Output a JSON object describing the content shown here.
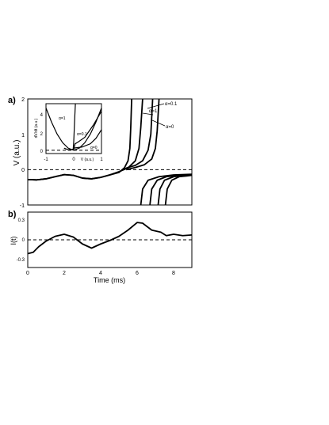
{
  "chart_data": [
    {
      "panel": "a)",
      "type": "line",
      "ylabel": "V (a.u.)",
      "xlim": [
        0,
        9
      ],
      "ylim": [
        -1,
        2
      ],
      "yticks": [
        "-1",
        "0",
        "1",
        "2"
      ],
      "reference_line_y": 0,
      "series": [
        {
          "name": "α=1",
          "points": [
            [
              0,
              -0.28
            ],
            [
              0.5,
              -0.29
            ],
            [
              1,
              -0.26
            ],
            [
              1.5,
              -0.2
            ],
            [
              2,
              -0.14
            ],
            [
              2.5,
              -0.16
            ],
            [
              3,
              -0.24
            ],
            [
              3.5,
              -0.26
            ],
            [
              4,
              -0.22
            ],
            [
              4.5,
              -0.15
            ],
            [
              5,
              -0.08
            ],
            [
              5.3,
              0.05
            ],
            [
              5.5,
              0.25
            ],
            [
              5.6,
              0.6
            ],
            [
              5.65,
              1.2
            ],
            [
              5.7,
              2.0
            ]
          ]
        },
        {
          "name": "α=0.1",
          "points": [
            [
              0,
              -0.28
            ],
            [
              0.5,
              -0.29
            ],
            [
              1,
              -0.26
            ],
            [
              1.5,
              -0.2
            ],
            [
              2,
              -0.14
            ],
            [
              2.5,
              -0.16
            ],
            [
              3,
              -0.24
            ],
            [
              3.5,
              -0.26
            ],
            [
              4,
              -0.22
            ],
            [
              4.5,
              -0.15
            ],
            [
              5,
              -0.06
            ],
            [
              5.5,
              0.05
            ],
            [
              5.9,
              0.25
            ],
            [
              6.1,
              0.6
            ],
            [
              6.2,
              1.2
            ],
            [
              6.3,
              2.0
            ]
          ]
        },
        {
          "name": "",
          "points": [
            [
              5.2,
              0
            ],
            [
              5.5,
              0.06
            ],
            [
              5.9,
              0.12
            ],
            [
              6.3,
              0.25
            ],
            [
              6.6,
              0.55
            ],
            [
              6.75,
              1.0
            ],
            [
              6.85,
              2.0
            ]
          ]
        },
        {
          "name": "α=0",
          "points": [
            [
              5.4,
              0
            ],
            [
              5.9,
              0.06
            ],
            [
              6.4,
              0.14
            ],
            [
              6.8,
              0.3
            ],
            [
              7.0,
              0.6
            ],
            [
              7.1,
              1.1
            ],
            [
              7.2,
              2.0
            ]
          ]
        },
        {
          "name": "",
          "points": [
            [
              6.2,
              -1.0
            ],
            [
              6.3,
              -0.55
            ],
            [
              6.6,
              -0.3
            ],
            [
              7.2,
              -0.2
            ],
            [
              8.0,
              -0.15
            ],
            [
              9.0,
              -0.13
            ]
          ]
        },
        {
          "name": "",
          "points": [
            [
              6.7,
              -1.0
            ],
            [
              6.8,
              -0.55
            ],
            [
              7.1,
              -0.3
            ],
            [
              7.6,
              -0.2
            ],
            [
              8.3,
              -0.16
            ],
            [
              9.0,
              -0.14
            ]
          ]
        },
        {
          "name": "",
          "points": [
            [
              7.15,
              -1.0
            ],
            [
              7.25,
              -0.55
            ],
            [
              7.5,
              -0.3
            ],
            [
              8.0,
              -0.2
            ],
            [
              8.5,
              -0.17
            ],
            [
              9.0,
              -0.15
            ]
          ]
        },
        {
          "name": "",
          "points": [
            [
              7.55,
              -1.0
            ],
            [
              7.65,
              -0.55
            ],
            [
              7.9,
              -0.3
            ],
            [
              8.3,
              -0.2
            ],
            [
              8.7,
              -0.18
            ],
            [
              9.0,
              -0.16
            ]
          ]
        }
      ],
      "annotations": [
        "α=1",
        "α=0.1",
        "α=0"
      ]
    },
    {
      "panel": "inset",
      "type": "line",
      "xlabel": "V (a.u.)",
      "ylabel": "dV/dt (a.u.)",
      "xlim": [
        -1,
        1
      ],
      "ylim": [
        -0.3,
        4.3
      ],
      "xticks": [
        "-1",
        "0",
        "1"
      ],
      "yticks": [
        "0",
        "2",
        "4"
      ],
      "reference_line_y": 0,
      "series": [
        {
          "name": "α=1",
          "points": [
            [
              -0.02,
              0.1
            ],
            [
              0.0,
              0.8
            ],
            [
              0.02,
              2.0
            ],
            [
              0.04,
              3.2
            ],
            [
              0.06,
              4.3
            ]
          ]
        },
        {
          "name": "α=0.1",
          "points": [
            [
              -0.35,
              0.2
            ],
            [
              -0.2,
              0.05
            ],
            [
              0.0,
              0.1
            ],
            [
              0.05,
              0.6
            ],
            [
              0.15,
              0.75
            ],
            [
              0.4,
              1.2
            ],
            [
              0.7,
              2.3
            ],
            [
              1.0,
              3.6
            ]
          ]
        },
        {
          "name": "α=0",
          "points": [
            [
              0.0,
              0.2
            ],
            [
              0.3,
              0.3
            ],
            [
              0.6,
              0.6
            ],
            [
              0.8,
              1.1
            ],
            [
              1.0,
              1.9
            ]
          ]
        },
        {
          "name": "",
          "points": [
            [
              -1.0,
              3.9
            ],
            [
              -0.8,
              2.6
            ],
            [
              -0.6,
              1.5
            ],
            [
              -0.4,
              0.7
            ],
            [
              -0.2,
              0.2
            ],
            [
              0.0,
              0.0
            ],
            [
              0.2,
              0.2
            ],
            [
              0.4,
              0.7
            ],
            [
              0.6,
              1.5
            ],
            [
              0.8,
              2.6
            ],
            [
              1.0,
              3.9
            ]
          ]
        }
      ],
      "annotations": [
        "α=1",
        "α=0.1",
        "α=0"
      ]
    },
    {
      "panel": "b)",
      "type": "line",
      "xlabel": "Time (ms)",
      "ylabel": "I(t)",
      "xlim": [
        0,
        9
      ],
      "ylim": [
        -0.4,
        0.4
      ],
      "xticks": [
        "0",
        "2",
        "4",
        "6",
        "8"
      ],
      "yticks": [
        "-0.3",
        "0",
        "0.3"
      ],
      "reference_line_y": 0,
      "series": [
        {
          "name": "",
          "points": [
            [
              0,
              -0.2
            ],
            [
              0.3,
              -0.18
            ],
            [
              0.6,
              -0.1
            ],
            [
              1.0,
              -0.02
            ],
            [
              1.5,
              0.05
            ],
            [
              2.0,
              0.08
            ],
            [
              2.5,
              0.04
            ],
            [
              3.0,
              -0.06
            ],
            [
              3.5,
              -0.12
            ],
            [
              4.0,
              -0.06
            ],
            [
              4.5,
              -0.01
            ],
            [
              5.0,
              0.05
            ],
            [
              5.5,
              0.14
            ],
            [
              6.0,
              0.25
            ],
            [
              6.3,
              0.24
            ],
            [
              6.8,
              0.14
            ],
            [
              7.3,
              0.11
            ],
            [
              7.6,
              0.06
            ],
            [
              8.0,
              0.08
            ],
            [
              8.5,
              0.06
            ],
            [
              9.0,
              0.07
            ]
          ]
        }
      ]
    }
  ]
}
